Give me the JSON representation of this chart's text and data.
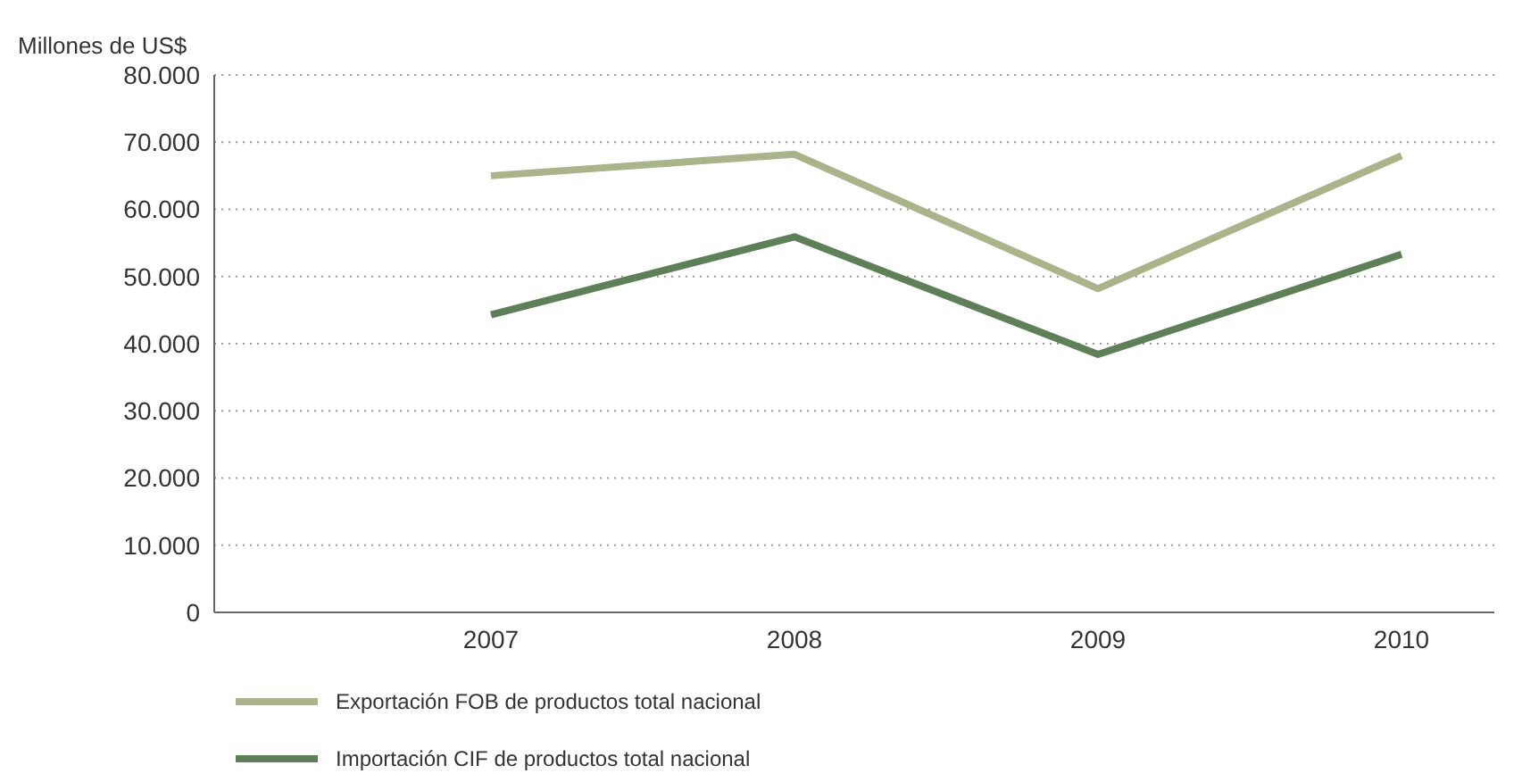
{
  "chart_data": {
    "type": "line",
    "ylabel": "Millones de US$",
    "categories": [
      "2007",
      "2008",
      "2009",
      "2010"
    ],
    "series": [
      {
        "name": "Exportación FOB de productos total nacional",
        "color": "#a9b48b",
        "values": [
          65000,
          68200,
          48200,
          68000
        ]
      },
      {
        "name": "Importación CIF de productos total nacional",
        "color": "#5f7f58",
        "values": [
          44300,
          55900,
          38400,
          53300
        ]
      }
    ],
    "ylim": [
      0,
      80000
    ],
    "yticks": [
      0,
      {
        "value": 10000,
        "label": "10.000"
      },
      {
        "value": 20000,
        "label": "20.000"
      },
      {
        "value": 30000,
        "label": "30.000"
      },
      {
        "value": 40000,
        "label": "40.000"
      },
      {
        "value": 50000,
        "label": "50.000"
      },
      {
        "value": 60000,
        "label": "60.000"
      },
      {
        "value": 70000,
        "label": "70.000"
      },
      {
        "value": 80000,
        "label": "80.000"
      }
    ],
    "grid": "y",
    "legend": "bottom",
    "marker": "none",
    "line_style": "solid"
  }
}
